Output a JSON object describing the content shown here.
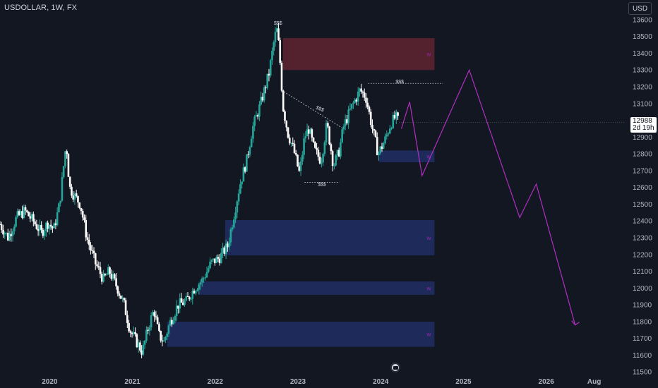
{
  "header": {
    "symbol_title": "USDOLLAR, 1W, FX"
  },
  "toolbar": {
    "currency_label": "USD"
  },
  "price_tag": {
    "price": "12988",
    "countdown": "2d 19h"
  },
  "colors": {
    "background": "#131722",
    "up_candle": "#26a69a",
    "down_candle": "#ffffff",
    "demand_zone": "#1e2d5f",
    "supply_zone": "#5a2430",
    "projection": "#b02fc1",
    "zone_label": "#9c27b0",
    "annotation": "#d1d4dc"
  },
  "chart_data": {
    "type": "candlestick",
    "title": "USDOLLAR, 1W, FX",
    "x_ticks": [
      "2020",
      "2021",
      "2022",
      "2023",
      "2024",
      "2025",
      "2026",
      "Aug"
    ],
    "y_ticks": [
      13600,
      13500,
      13400,
      13300,
      13200,
      13100,
      13000,
      12900,
      12800,
      12700,
      12600,
      12500,
      12400,
      12300,
      12200,
      12100,
      12000,
      11900,
      11800,
      11700,
      11600,
      11500
    ],
    "ylim": [
      11480,
      13650
    ],
    "xlim": [
      2019.4,
      2026.95
    ],
    "last_price": 12988,
    "price_path": [
      [
        2019.4,
        12380
      ],
      [
        2019.5,
        12300
      ],
      [
        2019.6,
        12420
      ],
      [
        2019.7,
        12460
      ],
      [
        2019.8,
        12400
      ],
      [
        2019.9,
        12330
      ],
      [
        2019.98,
        12390
      ],
      [
        2020.05,
        12350
      ],
      [
        2020.12,
        12500
      ],
      [
        2020.2,
        12870
      ],
      [
        2020.24,
        12600
      ],
      [
        2020.3,
        12550
      ],
      [
        2020.37,
        12500
      ],
      [
        2020.45,
        12300
      ],
      [
        2020.55,
        12150
      ],
      [
        2020.65,
        12050
      ],
      [
        2020.72,
        12100
      ],
      [
        2020.82,
        12000
      ],
      [
        2020.9,
        11900
      ],
      [
        2020.97,
        11750
      ],
      [
        2021.05,
        11680
      ],
      [
        2021.12,
        11620
      ],
      [
        2021.2,
        11780
      ],
      [
        2021.26,
        11870
      ],
      [
        2021.32,
        11720
      ],
      [
        2021.38,
        11680
      ],
      [
        2021.45,
        11790
      ],
      [
        2021.55,
        11900
      ],
      [
        2021.65,
        11920
      ],
      [
        2021.75,
        12000
      ],
      [
        2021.85,
        12050
      ],
      [
        2021.95,
        12150
      ],
      [
        2022.05,
        12180
      ],
      [
        2022.15,
        12250
      ],
      [
        2022.22,
        12420
      ],
      [
        2022.3,
        12620
      ],
      [
        2022.38,
        12760
      ],
      [
        2022.45,
        12950
      ],
      [
        2022.55,
        13100
      ],
      [
        2022.65,
        13280
      ],
      [
        2022.72,
        13500
      ],
      [
        2022.75,
        13540
      ],
      [
        2022.78,
        13380
      ],
      [
        2022.82,
        13080
      ],
      [
        2022.88,
        12920
      ],
      [
        2022.95,
        12820
      ],
      [
        2023.02,
        12680
      ],
      [
        2023.08,
        12900
      ],
      [
        2023.13,
        12950
      ],
      [
        2023.2,
        12820
      ],
      [
        2023.28,
        12760
      ],
      [
        2023.35,
        12980
      ],
      [
        2023.43,
        12730
      ],
      [
        2023.5,
        12820
      ],
      [
        2023.55,
        12960
      ],
      [
        2023.65,
        13080
      ],
      [
        2023.75,
        13180
      ],
      [
        2023.82,
        13140
      ],
      [
        2023.9,
        12950
      ],
      [
        2023.97,
        12800
      ],
      [
        2024.05,
        12880
      ],
      [
        2024.12,
        12980
      ],
      [
        2024.18,
        13020
      ],
      [
        2024.22,
        12988
      ]
    ],
    "zones": [
      {
        "kind": "supply",
        "x": [
          2022.82,
          2024.65
        ],
        "y": [
          13300,
          13490
        ],
        "label": "w"
      },
      {
        "kind": "demand",
        "x": [
          2023.98,
          2024.65
        ],
        "y": [
          12750,
          12820
        ],
        "label": "w"
      },
      {
        "kind": "demand",
        "x": [
          2022.12,
          2024.65
        ],
        "y": [
          12195,
          12405
        ],
        "label": "w"
      },
      {
        "kind": "demand",
        "x": [
          2021.8,
          2024.65
        ],
        "y": [
          11960,
          12040
        ],
        "label": "w"
      },
      {
        "kind": "demand",
        "x": [
          2021.42,
          2024.65
        ],
        "y": [
          11650,
          11800
        ],
        "label": "w"
      }
    ],
    "liquidity_marks": [
      {
        "text": "$$$",
        "x": 2022.76,
        "y": 13570
      },
      {
        "text": "$$$",
        "x": 2024.23,
        "y": 13220
      },
      {
        "text": "$$$",
        "x": 2023.26,
        "y": 13060
      },
      {
        "text": "$$$",
        "x": 2023.29,
        "y": 12610
      }
    ],
    "projection": [
      [
        2024.25,
        12950
      ],
      [
        2024.35,
        13110
      ],
      [
        2024.5,
        12670
      ],
      [
        2025.07,
        13300
      ],
      [
        2025.68,
        12420
      ],
      [
        2025.88,
        12620
      ],
      [
        2026.35,
        11780
      ]
    ]
  }
}
